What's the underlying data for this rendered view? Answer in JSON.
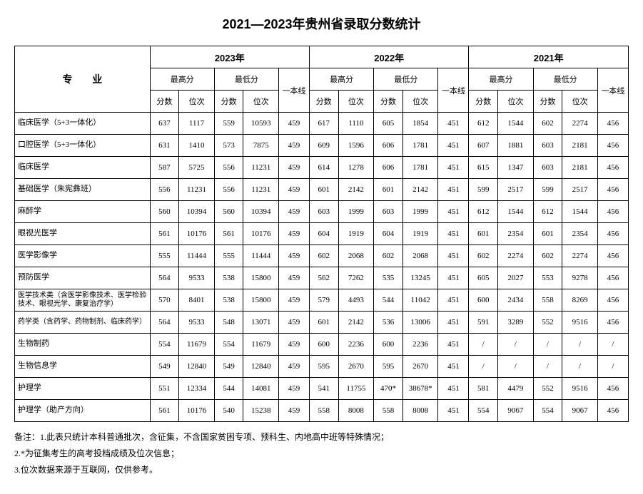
{
  "title": "2021—2023年贵州省录取分数统计",
  "header": {
    "major": "专 业",
    "years": [
      "2023年",
      "2022年",
      "2021年"
    ],
    "high": "最高分",
    "low": "最低分",
    "score": "分数",
    "rank": "位次",
    "cutoff": "一本线"
  },
  "rows": [
    {
      "major": "临床医学（5+3一体化）",
      "y23": {
        "hs": "637",
        "hr": "1117",
        "ls": "559",
        "lr": "10593",
        "c": "459"
      },
      "y22": {
        "hs": "617",
        "hr": "1110",
        "ls": "605",
        "lr": "1854",
        "c": "451"
      },
      "y21": {
        "hs": "612",
        "hr": "1544",
        "ls": "602",
        "lr": "2274",
        "c": "456"
      }
    },
    {
      "major": "口腔医学（5+3一体化）",
      "y23": {
        "hs": "631",
        "hr": "1410",
        "ls": "573",
        "lr": "7875",
        "c": "459"
      },
      "y22": {
        "hs": "609",
        "hr": "1596",
        "ls": "606",
        "lr": "1781",
        "c": "451"
      },
      "y21": {
        "hs": "607",
        "hr": "1881",
        "ls": "603",
        "lr": "2181",
        "c": "456"
      }
    },
    {
      "major": "临床医学",
      "y23": {
        "hs": "587",
        "hr": "5725",
        "ls": "556",
        "lr": "11231",
        "c": "459"
      },
      "y22": {
        "hs": "614",
        "hr": "1278",
        "ls": "606",
        "lr": "1781",
        "c": "451"
      },
      "y21": {
        "hs": "615",
        "hr": "1347",
        "ls": "603",
        "lr": "2181",
        "c": "456"
      }
    },
    {
      "major": "基础医学（朱宪彝班）",
      "y23": {
        "hs": "556",
        "hr": "11231",
        "ls": "556",
        "lr": "11231",
        "c": "459"
      },
      "y22": {
        "hs": "601",
        "hr": "2142",
        "ls": "601",
        "lr": "2142",
        "c": "451"
      },
      "y21": {
        "hs": "599",
        "hr": "2517",
        "ls": "599",
        "lr": "2517",
        "c": "456"
      }
    },
    {
      "major": "麻醉学",
      "y23": {
        "hs": "560",
        "hr": "10394",
        "ls": "560",
        "lr": "10394",
        "c": "459"
      },
      "y22": {
        "hs": "603",
        "hr": "1999",
        "ls": "603",
        "lr": "1999",
        "c": "451"
      },
      "y21": {
        "hs": "612",
        "hr": "1544",
        "ls": "612",
        "lr": "1544",
        "c": "456"
      }
    },
    {
      "major": "眼视光医学",
      "y23": {
        "hs": "561",
        "hr": "10176",
        "ls": "561",
        "lr": "10176",
        "c": "459"
      },
      "y22": {
        "hs": "604",
        "hr": "1919",
        "ls": "604",
        "lr": "1919",
        "c": "451"
      },
      "y21": {
        "hs": "601",
        "hr": "2354",
        "ls": "601",
        "lr": "2354",
        "c": "456"
      }
    },
    {
      "major": "医学影像学",
      "y23": {
        "hs": "555",
        "hr": "11444",
        "ls": "555",
        "lr": "11444",
        "c": "459"
      },
      "y22": {
        "hs": "602",
        "hr": "2068",
        "ls": "602",
        "lr": "2068",
        "c": "451"
      },
      "y21": {
        "hs": "602",
        "hr": "2274",
        "ls": "602",
        "lr": "2274",
        "c": "456"
      }
    },
    {
      "major": "预防医学",
      "y23": {
        "hs": "564",
        "hr": "9533",
        "ls": "538",
        "lr": "15800",
        "c": "459"
      },
      "y22": {
        "hs": "562",
        "hr": "7262",
        "ls": "535",
        "lr": "13245",
        "c": "451"
      },
      "y21": {
        "hs": "605",
        "hr": "2027",
        "ls": "553",
        "lr": "9278",
        "c": "456"
      }
    },
    {
      "major": "医学技术类（含医学影像技术、医学检验技术、眼视光学、康复治疗学）",
      "small": true,
      "y23": {
        "hs": "570",
        "hr": "8401",
        "ls": "538",
        "lr": "15800",
        "c": "459"
      },
      "y22": {
        "hs": "579",
        "hr": "4493",
        "ls": "544",
        "lr": "11042",
        "c": "451"
      },
      "y21": {
        "hs": "600",
        "hr": "2434",
        "ls": "558",
        "lr": "8269",
        "c": "456"
      }
    },
    {
      "major": "药学类（含药学、药物制剂、临床药学）",
      "small": true,
      "y23": {
        "hs": "564",
        "hr": "9533",
        "ls": "548",
        "lr": "13071",
        "c": "459"
      },
      "y22": {
        "hs": "601",
        "hr": "2142",
        "ls": "536",
        "lr": "13006",
        "c": "451"
      },
      "y21": {
        "hs": "591",
        "hr": "3289",
        "ls": "552",
        "lr": "9516",
        "c": "456"
      }
    },
    {
      "major": "生物制药",
      "y23": {
        "hs": "554",
        "hr": "11679",
        "ls": "554",
        "lr": "11679",
        "c": "459"
      },
      "y22": {
        "hs": "600",
        "hr": "2236",
        "ls": "600",
        "lr": "2236",
        "c": "451"
      },
      "y21": {
        "hs": "/",
        "hr": "/",
        "ls": "/",
        "lr": "/",
        "c": "/"
      }
    },
    {
      "major": "生物信息学",
      "y23": {
        "hs": "549",
        "hr": "12840",
        "ls": "549",
        "lr": "12840",
        "c": "459"
      },
      "y22": {
        "hs": "595",
        "hr": "2670",
        "ls": "595",
        "lr": "2670",
        "c": "451"
      },
      "y21": {
        "hs": "/",
        "hr": "/",
        "ls": "/",
        "lr": "/",
        "c": "/"
      }
    },
    {
      "major": "护理学",
      "y23": {
        "hs": "551",
        "hr": "12334",
        "ls": "544",
        "lr": "14081",
        "c": "459"
      },
      "y22": {
        "hs": "541",
        "hr": "11755",
        "ls": "470*",
        "lr": "38678*",
        "c": "451"
      },
      "y21": {
        "hs": "581",
        "hr": "4479",
        "ls": "552",
        "lr": "9516",
        "c": "456"
      }
    },
    {
      "major": "护理学（助产方向）",
      "y23": {
        "hs": "561",
        "hr": "10176",
        "ls": "540",
        "lr": "15238",
        "c": "459"
      },
      "y22": {
        "hs": "558",
        "hr": "8008",
        "ls": "558",
        "lr": "8008",
        "c": "451"
      },
      "y21": {
        "hs": "554",
        "hr": "9067",
        "ls": "554",
        "lr": "9067",
        "c": "456"
      }
    }
  ],
  "notes": [
    "备注：1.此表只统计本科普通批次，含征集，不含国家贫困专项、预科生、内地高中班等特殊情况；",
    "2.*为征集考生的高考投档成绩及位次信息；",
    "3.位次数据来源于互联网，仅供参考。"
  ]
}
